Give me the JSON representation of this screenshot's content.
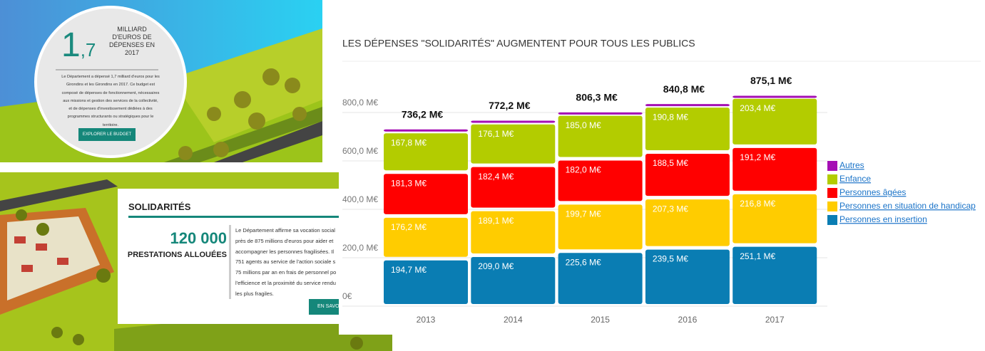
{
  "budget_panel": {
    "figure_int": "1",
    "figure_dec": ",7",
    "figure_caption": [
      "MILLIARD",
      "D'EUROS DE",
      "DÉPENSES EN",
      "2017"
    ],
    "text": [
      "Le Département a dépensé 1,7 milliard d'euros pour les",
      "Girondins et les Girondins en 2017. Ce budget est",
      "composé de dépenses de fonctionnement, nécessaires",
      "aux missions et gestion des services de la collectivité,",
      "et de dépenses d'investissement dédiées à des",
      "programmes structurants ou stratégiques pour le",
      "territoire."
    ],
    "button": "EXPLORER LE BUDGET"
  },
  "solidarity_panel": {
    "title": "SOLIDARITÉS",
    "figure": "120 000",
    "figure_caption": "PRESTATIONS ALLOUÉES",
    "text": [
      "Le Département affirme sa vocation social",
      "près de 875 millions d'euros pour aider et",
      "accompagner les personnes fragilisées. Il",
      "751 agents au service de l'action sociale s",
      "75 millions par an en frais de personnel po",
      "l'efficience et la proximité du service rendu",
      "les plus fragiles."
    ],
    "button": "EN SAVO"
  },
  "chart_data": {
    "type": "stacked_bar",
    "title": "LES DÉPENSES \"SOLIDARITÉS\" AUGMENTENT POUR TOUS LES PUBLICS",
    "categories": [
      "2013",
      "2014",
      "2015",
      "2016",
      "2017"
    ],
    "ylim": [
      0,
      900
    ],
    "yticks": [
      {
        "value": 0,
        "label": "0€"
      },
      {
        "value": 200,
        "label": "200,0 M€"
      },
      {
        "value": 400,
        "label": "400,0 M€"
      },
      {
        "value": 600,
        "label": "600,0 M€"
      },
      {
        "value": 800,
        "label": "800,0 M€"
      }
    ],
    "grid": true,
    "legend_position": "right",
    "series": [
      {
        "name": "Personnes en insertion",
        "color": "#0a7db3",
        "values": [
          194.7,
          209.0,
          225.6,
          239.5,
          251.1
        ],
        "value_labels": [
          "194,7 M€",
          "209,0 M€",
          "225,6 M€",
          "239,5 M€",
          "251,1 M€"
        ]
      },
      {
        "name": "Personnes en situation de handicap",
        "color": "#ffcc00",
        "values": [
          176.2,
          189.1,
          199.7,
          207.3,
          216.8
        ],
        "value_labels": [
          "176,2 M€",
          "189,1 M€",
          "199,7 M€",
          "207,3 M€",
          "216,8 M€"
        ]
      },
      {
        "name": "Personnes âgées",
        "color": "#ff0000",
        "values": [
          181.3,
          182.4,
          182.0,
          188.5,
          191.2
        ],
        "value_labels": [
          "181,3 M€",
          "182,4 M€",
          "182,0 M€",
          "188,5 M€",
          "191,2 M€"
        ]
      },
      {
        "name": "Enfance",
        "color": "#b3cc00",
        "values": [
          167.8,
          176.1,
          185.0,
          190.8,
          203.4
        ],
        "value_labels": [
          "167,8 M€",
          "176,1 M€",
          "185,0 M€",
          "190,8 M€",
          "203,4 M€"
        ]
      },
      {
        "name": "Autres",
        "color": "#a50fb4",
        "values": [
          16.2,
          15.6,
          14.0,
          14.7,
          12.6
        ]
      }
    ],
    "totals": {
      "values": [
        736.2,
        772.2,
        806.3,
        840.8,
        875.1
      ],
      "value_labels": [
        "736,2 M€",
        "772,2 M€",
        "806,3 M€",
        "840,8 M€",
        "875,1 M€"
      ]
    }
  }
}
